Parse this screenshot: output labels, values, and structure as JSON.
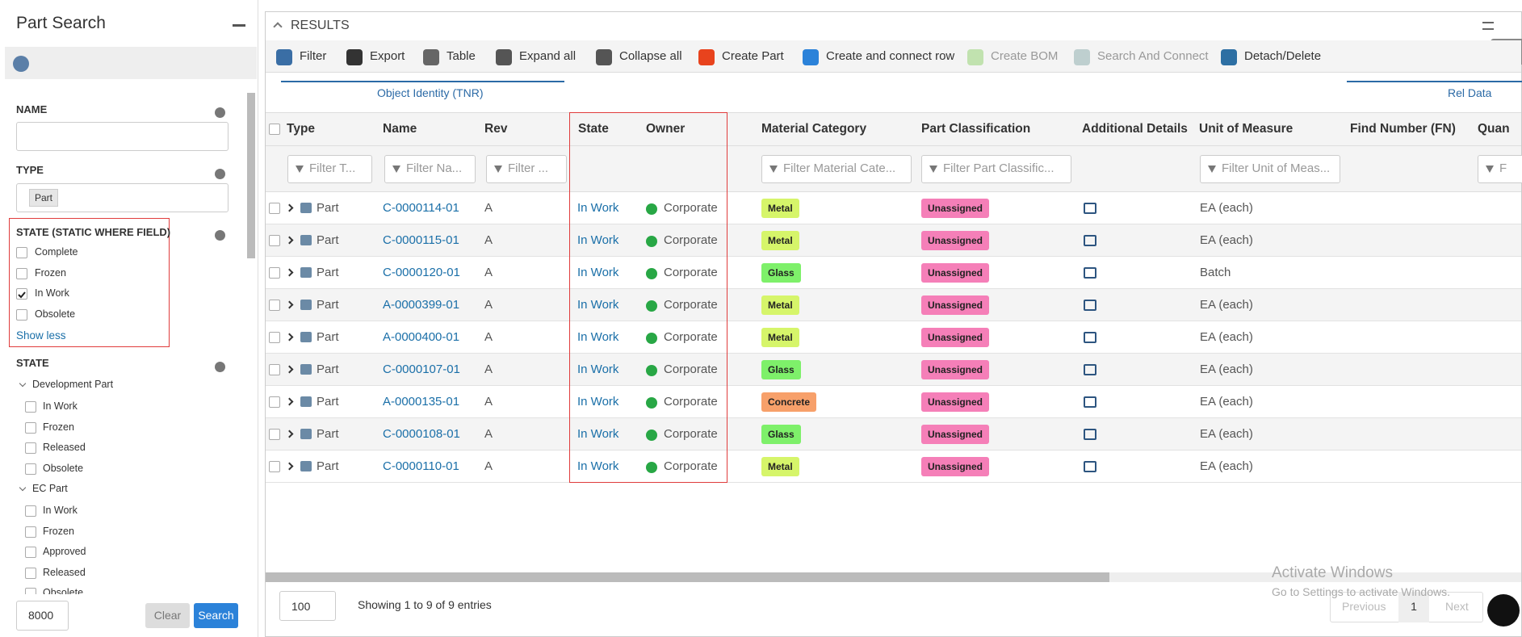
{
  "sidebar": {
    "title": "Part Search",
    "name_label": "NAME",
    "type_label": "TYPE",
    "type_chip": "Part",
    "state_static_label": "STATE (STATIC WHERE FIELD)",
    "state_static_options": [
      {
        "label": "Complete",
        "checked": false
      },
      {
        "label": "Frozen",
        "checked": false
      },
      {
        "label": "In Work",
        "checked": true
      },
      {
        "label": "Obsolete",
        "checked": false
      }
    ],
    "show_less": "Show less",
    "state_label": "STATE",
    "state_groups": [
      {
        "name": "Development Part",
        "options": [
          "In Work",
          "Frozen",
          "Released",
          "Obsolete"
        ]
      },
      {
        "name": "EC Part",
        "options": [
          "In Work",
          "Frozen",
          "Approved",
          "Released",
          "Obsolete"
        ]
      }
    ],
    "max_results": "8000",
    "clear": "Clear",
    "search": "Search"
  },
  "results": {
    "title": "RESULTS",
    "toolbar": [
      {
        "label": "Filter",
        "disabled": false
      },
      {
        "label": "Export",
        "disabled": false
      },
      {
        "label": "Table",
        "disabled": false
      },
      {
        "label": "Expand all",
        "disabled": false
      },
      {
        "label": "Collapse all",
        "disabled": false
      },
      {
        "label": "Create Part",
        "disabled": false
      },
      {
        "label": "Create and connect row",
        "disabled": false
      },
      {
        "label": "Create BOM",
        "disabled": true
      },
      {
        "label": "Search And Connect",
        "disabled": true
      },
      {
        "label": "Detach/Delete",
        "disabled": false
      }
    ],
    "group_headers": [
      "Object Identity (TNR)",
      "Rel Data"
    ],
    "columns": [
      "Type",
      "Name",
      "Rev",
      "State",
      "Owner",
      "Material Category",
      "Part Classification",
      "Additional Details",
      "Unit of Measure",
      "Find Number (FN)",
      "Quan"
    ],
    "filters": [
      "Filter T...",
      "Filter Na...",
      "Filter ...",
      "Filter Material Cate...",
      "Filter Part Classific...",
      "Filter Unit of Meas...",
      "F"
    ],
    "rows": [
      {
        "type": "Part",
        "name": "C-0000114-01",
        "rev": "A",
        "state": "In Work",
        "owner": "Corporate",
        "material": {
          "label": "Metal",
          "color": "#d6f56a"
        },
        "classification": "Unassigned",
        "uom": "EA (each)"
      },
      {
        "type": "Part",
        "name": "C-0000115-01",
        "rev": "A",
        "state": "In Work",
        "owner": "Corporate",
        "material": {
          "label": "Metal",
          "color": "#d6f56a"
        },
        "classification": "Unassigned",
        "uom": "EA (each)"
      },
      {
        "type": "Part",
        "name": "C-0000120-01",
        "rev": "A",
        "state": "In Work",
        "owner": "Corporate",
        "material": {
          "label": "Glass",
          "color": "#7ef06a"
        },
        "classification": "Unassigned",
        "uom": "Batch"
      },
      {
        "type": "Part",
        "name": "A-0000399-01",
        "rev": "A",
        "state": "In Work",
        "owner": "Corporate",
        "material": {
          "label": "Metal",
          "color": "#d6f56a"
        },
        "classification": "Unassigned",
        "uom": "EA (each)"
      },
      {
        "type": "Part",
        "name": "A-0000400-01",
        "rev": "A",
        "state": "In Work",
        "owner": "Corporate",
        "material": {
          "label": "Metal",
          "color": "#d6f56a"
        },
        "classification": "Unassigned",
        "uom": "EA (each)"
      },
      {
        "type": "Part",
        "name": "C-0000107-01",
        "rev": "A",
        "state": "In Work",
        "owner": "Corporate",
        "material": {
          "label": "Glass",
          "color": "#7ef06a"
        },
        "classification": "Unassigned",
        "uom": "EA (each)"
      },
      {
        "type": "Part",
        "name": "A-0000135-01",
        "rev": "A",
        "state": "In Work",
        "owner": "Corporate",
        "material": {
          "label": "Concrete",
          "color": "#f7a06a"
        },
        "classification": "Unassigned",
        "uom": "EA (each)"
      },
      {
        "type": "Part",
        "name": "C-0000108-01",
        "rev": "A",
        "state": "In Work",
        "owner": "Corporate",
        "material": {
          "label": "Glass",
          "color": "#7ef06a"
        },
        "classification": "Unassigned",
        "uom": "EA (each)"
      },
      {
        "type": "Part",
        "name": "C-0000110-01",
        "rev": "A",
        "state": "In Work",
        "owner": "Corporate",
        "material": {
          "label": "Metal",
          "color": "#d6f56a"
        },
        "classification": "Unassigned",
        "uom": "EA (each)"
      }
    ],
    "page_size": "100",
    "info": "Showing 1 to 9 of 9 entries",
    "pagination": [
      "Previous",
      "1",
      "Next"
    ]
  },
  "watermark": {
    "title": "Activate Windows",
    "subtitle": "Go to Settings to activate Windows."
  }
}
